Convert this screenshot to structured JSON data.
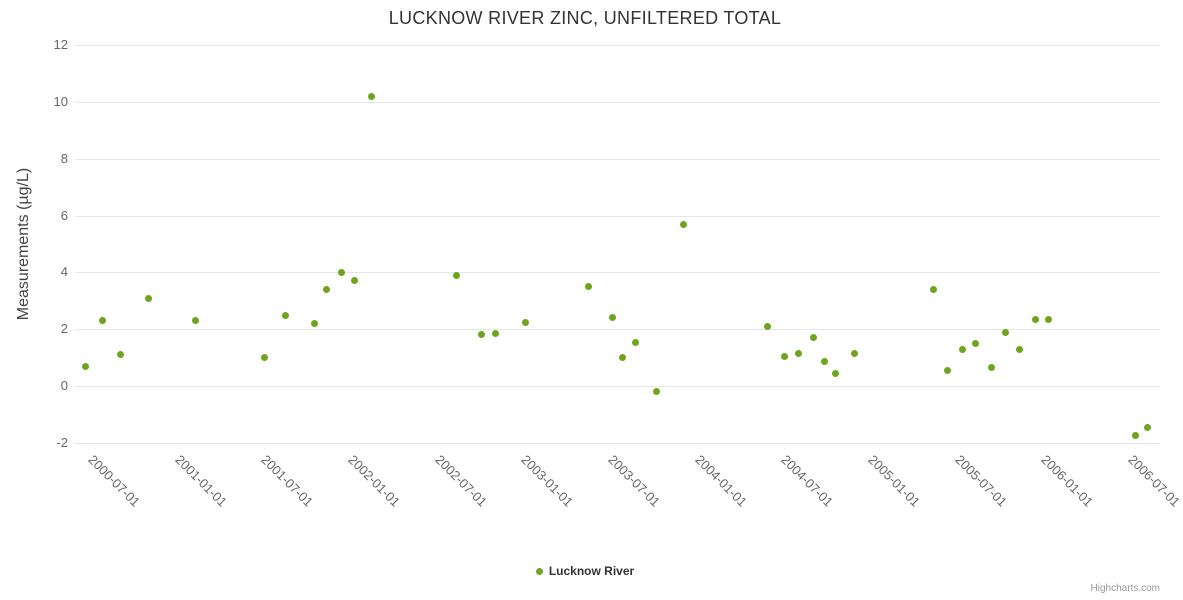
{
  "title": "LUCKNOW RIVER ZINC, UNFILTERED TOTAL",
  "y_axis_title": "Measurements (µg/L)",
  "legend": {
    "label": "Lucknow River"
  },
  "credits": "Highcharts.com",
  "colors": {
    "series": "#6da51c",
    "grid": "#e6e6e6",
    "tick_text": "#666666",
    "title_text": "#333333"
  },
  "chart_data": {
    "type": "scatter",
    "title": "LUCKNOW RIVER ZINC, UNFILTERED TOTAL",
    "xlabel": "",
    "ylabel": "Measurements (µg/L)",
    "ylim": [
      -2,
      12
    ],
    "yticks": [
      -2,
      0,
      2,
      4,
      6,
      8,
      10,
      12
    ],
    "xticks": [
      "2000-07-01",
      "2001-01-01",
      "2001-07-01",
      "2002-01-01",
      "2002-07-01",
      "2003-01-01",
      "2003-07-01",
      "2004-01-01",
      "2004-07-01",
      "2005-01-01",
      "2005-07-01",
      "2006-01-01",
      "2006-07-01"
    ],
    "grid": true,
    "legend_position": "bottom-center",
    "series": [
      {
        "name": "Lucknow River",
        "color": "#6da51c",
        "points": [
          {
            "date": "2000-04-20",
            "value": 0.7
          },
          {
            "date": "2000-05-25",
            "value": 2.3
          },
          {
            "date": "2000-07-01",
            "value": 1.1
          },
          {
            "date": "2000-09-01",
            "value": 3.1
          },
          {
            "date": "2000-12-07",
            "value": 2.3
          },
          {
            "date": "2001-05-01",
            "value": 1.0
          },
          {
            "date": "2001-06-15",
            "value": 2.5
          },
          {
            "date": "2001-08-15",
            "value": 2.2
          },
          {
            "date": "2001-09-10",
            "value": 3.4
          },
          {
            "date": "2001-10-10",
            "value": 4.0
          },
          {
            "date": "2001-11-08",
            "value": 3.7
          },
          {
            "date": "2001-12-13",
            "value": 10.2
          },
          {
            "date": "2002-06-10",
            "value": 3.9
          },
          {
            "date": "2002-08-01",
            "value": 1.8
          },
          {
            "date": "2002-09-01",
            "value": 1.85
          },
          {
            "date": "2002-11-03",
            "value": 2.25
          },
          {
            "date": "2003-03-13",
            "value": 3.5
          },
          {
            "date": "2003-05-03",
            "value": 2.4
          },
          {
            "date": "2003-05-25",
            "value": 1.0
          },
          {
            "date": "2003-06-22",
            "value": 1.55
          },
          {
            "date": "2003-08-05",
            "value": -0.2
          },
          {
            "date": "2003-10-01",
            "value": 5.7
          },
          {
            "date": "2004-03-25",
            "value": 2.1
          },
          {
            "date": "2004-05-01",
            "value": 1.05
          },
          {
            "date": "2004-06-01",
            "value": 1.15
          },
          {
            "date": "2004-07-01",
            "value": 1.7
          },
          {
            "date": "2004-07-25",
            "value": 0.85
          },
          {
            "date": "2004-08-18",
            "value": 0.45
          },
          {
            "date": "2004-09-27",
            "value": 1.15
          },
          {
            "date": "2005-03-10",
            "value": 3.4
          },
          {
            "date": "2005-04-10",
            "value": 0.55
          },
          {
            "date": "2005-05-10",
            "value": 1.3
          },
          {
            "date": "2005-06-08",
            "value": 1.5
          },
          {
            "date": "2005-07-11",
            "value": 0.65
          },
          {
            "date": "2005-08-10",
            "value": 1.9
          },
          {
            "date": "2005-09-10",
            "value": 1.3
          },
          {
            "date": "2005-10-12",
            "value": 2.35
          },
          {
            "date": "2005-11-10",
            "value": 2.35
          },
          {
            "date": "2006-05-10",
            "value": -1.75
          },
          {
            "date": "2006-06-05",
            "value": -1.45
          }
        ]
      }
    ]
  }
}
